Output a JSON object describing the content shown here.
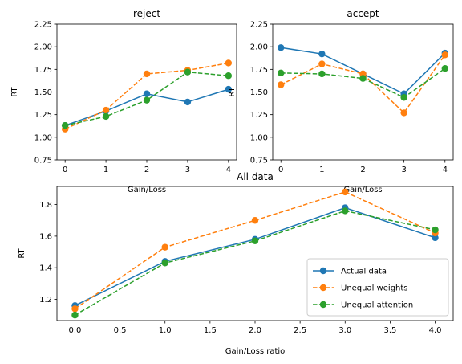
{
  "chart_data": [
    {
      "type": "line",
      "title": "reject",
      "xlabel": "Gain/Loss",
      "ylabel": "RT",
      "x": [
        0,
        1,
        2,
        3,
        4
      ],
      "xticks": [
        "0",
        "1",
        "2",
        "3",
        "4"
      ],
      "yticks": [
        "0.75",
        "1.00",
        "1.25",
        "1.50",
        "1.75",
        "2.00",
        "2.25"
      ],
      "ylim": [
        0.75,
        2.25
      ],
      "series": [
        {
          "name": "Actual data",
          "color": "#1f77b4",
          "dashed": false,
          "values": [
            1.13,
            1.29,
            1.48,
            1.39,
            1.53
          ]
        },
        {
          "name": "Unequal weights",
          "color": "#ff7f0e",
          "dashed": true,
          "values": [
            1.09,
            1.3,
            1.7,
            1.74,
            1.82
          ]
        },
        {
          "name": "Unequal attention",
          "color": "#2ca02c",
          "dashed": true,
          "values": [
            1.13,
            1.23,
            1.41,
            1.72,
            1.68
          ]
        }
      ]
    },
    {
      "type": "line",
      "title": "accept",
      "xlabel": "Gain/Loss",
      "ylabel": "RT",
      "x": [
        0,
        1,
        2,
        3,
        4
      ],
      "xticks": [
        "0",
        "1",
        "2",
        "3",
        "4"
      ],
      "yticks": [
        "0.75",
        "1.00",
        "1.25",
        "1.50",
        "1.75",
        "2.00",
        "2.25"
      ],
      "ylim": [
        0.75,
        2.25
      ],
      "series": [
        {
          "name": "Actual data",
          "color": "#1f77b4",
          "dashed": false,
          "values": [
            1.99,
            1.92,
            1.7,
            1.48,
            1.93
          ]
        },
        {
          "name": "Unequal weights",
          "color": "#ff7f0e",
          "dashed": true,
          "values": [
            1.58,
            1.81,
            1.7,
            1.27,
            1.91
          ]
        },
        {
          "name": "Unequal attention",
          "color": "#2ca02c",
          "dashed": true,
          "values": [
            1.71,
            1.7,
            1.65,
            1.44,
            1.76
          ]
        }
      ]
    },
    {
      "type": "line",
      "title": "All data",
      "xlabel": "Gain/Loss ratio",
      "ylabel": "RT",
      "x": [
        0,
        1,
        2,
        3,
        4
      ],
      "xticks": [
        "0.0",
        "0.5",
        "1.0",
        "1.5",
        "2.0",
        "2.5",
        "3.0",
        "3.5",
        "4.0"
      ],
      "yticks": [
        "1.2",
        "1.4",
        "1.6",
        "1.8"
      ],
      "legend_position": "lower-right",
      "series": [
        {
          "name": "Actual data",
          "color": "#1f77b4",
          "dashed": false,
          "values": [
            1.16,
            1.44,
            1.58,
            1.78,
            1.59
          ]
        },
        {
          "name": "Unequal weights",
          "color": "#ff7f0e",
          "dashed": true,
          "values": [
            1.14,
            1.53,
            1.7,
            1.88,
            1.62
          ]
        },
        {
          "name": "Unequal attention",
          "color": "#2ca02c",
          "dashed": true,
          "values": [
            1.1,
            1.43,
            1.57,
            1.76,
            1.64
          ]
        }
      ]
    }
  ]
}
